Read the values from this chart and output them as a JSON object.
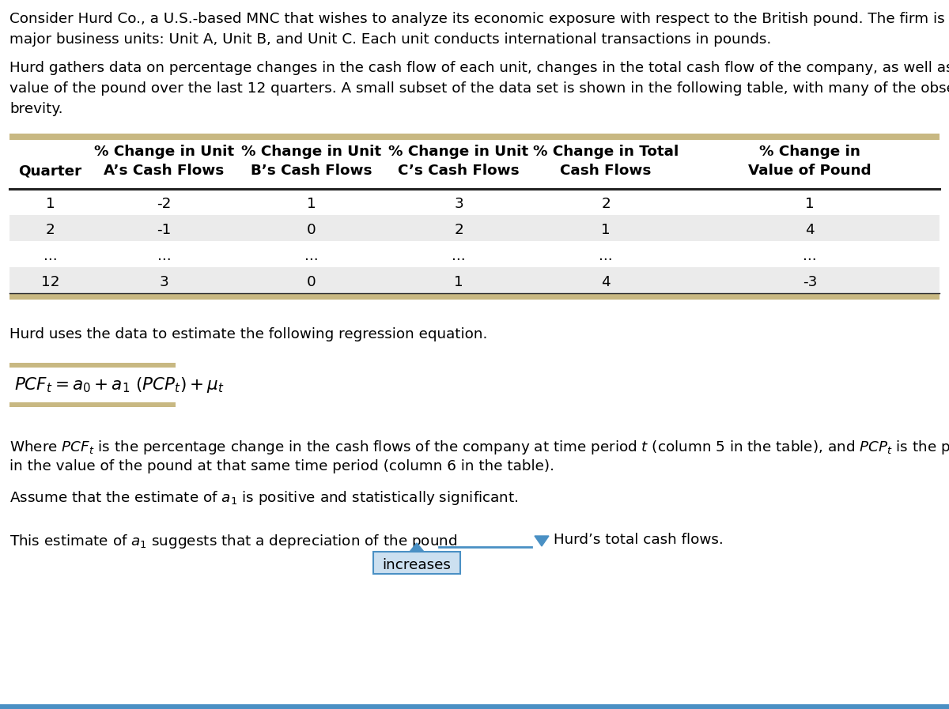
{
  "bg_color": "#ffffff",
  "text_color": "#000000",
  "table_header_bg": "#c8b882",
  "table_row_alt_bg": "#ebebeb",
  "para1_line1": "Consider Hurd Co., a U.S.-based MNC that wishes to analyze its economic exposure with respect to the British pound. The firm is comprised of three",
  "para1_line2": "major business units: Unit A, Unit B, and Unit C. Each unit conducts international transactions in pounds.",
  "para2_line1": "Hurd gathers data on percentage changes in the cash flow of each unit, changes in the total cash flow of the company, as well as the change in the",
  "para2_line2": "value of the pound over the last 12 quarters. A small subset of the data set is shown in the following table, with many of the observations omitted for",
  "para2_line3": "brevity.",
  "col_headers_row1": [
    "",
    "% Change in Unit",
    "% Change in Unit",
    "% Change in Unit",
    "% Change in Total",
    "% Change in"
  ],
  "col_headers_row2": [
    "Quarter",
    "A’s Cash Flows",
    "B’s Cash Flows",
    "C’s Cash Flows",
    "Cash Flows",
    "Value of Pound"
  ],
  "table_data": [
    [
      "1",
      "-2",
      "1",
      "3",
      "2",
      "1"
    ],
    [
      "2",
      "-1",
      "0",
      "2",
      "1",
      "4"
    ],
    [
      "...",
      "...",
      "...",
      "...",
      "...",
      "..."
    ],
    [
      "12",
      "3",
      "0",
      "1",
      "4",
      "-3"
    ]
  ],
  "regression_label": "Hurd uses the data to estimate the following regression equation.",
  "where_line2": "in the value of the pound at that same time period (column 6 in the table).",
  "assume_line": "Assume that the estimate of ",
  "assume_line_mid": "a",
  "assume_line_end": " is positive and statistically significant.",
  "last_prefix1": "This estimate of ",
  "last_prefix2": "a",
  "last_prefix3": " suggests that a depreciation of the pound",
  "last_suffix": "Hurd’s total cash flows.",
  "dropdown_text": "increases",
  "dropdown_fill": "#cce0f0",
  "dropdown_border": "#4a90c4",
  "arrow_fill": "#4a90c4",
  "underline_color": "#4a90c4",
  "formula_bar_color": "#c8b882",
  "bottom_bar_color": "#4a90c4",
  "font_size": 13.2,
  "font_size_bold": 13.2,
  "font_size_eq": 15.5
}
